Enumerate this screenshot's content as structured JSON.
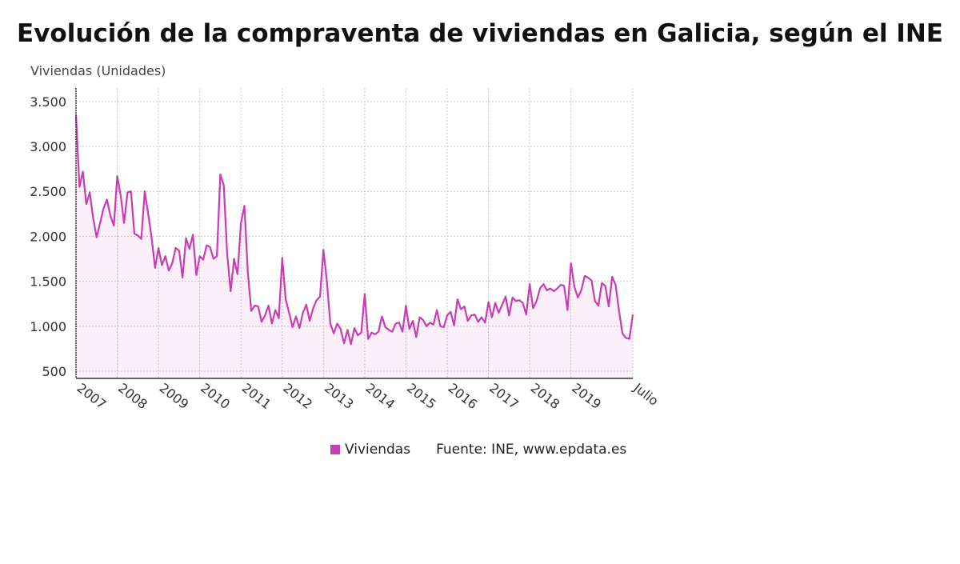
{
  "chart_data": {
    "type": "area",
    "title": "Evolución de la compraventa de viviendas en Galicia, según el INE",
    "ylabel": "Viviendas (Unidades)",
    "xlabel": "",
    "series": [
      {
        "name": "Viviendas",
        "color": "#c83cb4"
      }
    ],
    "source": "Fuente: INE, www.epdata.es",
    "ylim": [
      420,
      3650
    ],
    "yticks": [
      500,
      1000,
      1500,
      2000,
      2500,
      3000,
      3500
    ],
    "ytick_labels": [
      "500",
      "1.000",
      "1.500",
      "2.000",
      "2.500",
      "3.000",
      "3.500"
    ],
    "xticks": [
      {
        "label": "2007",
        "date": "2007-01"
      },
      {
        "label": "2008",
        "date": "2008-01"
      },
      {
        "label": "2009",
        "date": "2009-01"
      },
      {
        "label": "2010",
        "date": "2010-01"
      },
      {
        "label": "2011",
        "date": "2011-01"
      },
      {
        "label": "2012",
        "date": "2012-01"
      },
      {
        "label": "2013",
        "date": "2013-01"
      },
      {
        "label": "2014",
        "date": "2014-01"
      },
      {
        "label": "2015",
        "date": "2015-01"
      },
      {
        "label": "2016",
        "date": "2016-01"
      },
      {
        "label": "2017",
        "date": "2017-01"
      },
      {
        "label": "2018",
        "date": "2018-01"
      },
      {
        "label": "2019",
        "date": "2019-01"
      },
      {
        "label": "Julio",
        "date": "2020-07"
      }
    ],
    "x_start": "2007-01",
    "x_end": "2020-07",
    "grid": true,
    "legend_position": "bottom",
    "values": [
      3350,
      2550,
      2720,
      2360,
      2490,
      2200,
      1990,
      2150,
      2310,
      2410,
      2230,
      2120,
      2670,
      2450,
      2150,
      2490,
      2500,
      2030,
      2010,
      1970,
      2500,
      2250,
      1990,
      1650,
      1870,
      1680,
      1780,
      1620,
      1700,
      1870,
      1840,
      1540,
      1980,
      1860,
      2020,
      1570,
      1780,
      1740,
      1900,
      1880,
      1750,
      1780,
      2690,
      2570,
      1800,
      1390,
      1750,
      1580,
      2150,
      2340,
      1600,
      1170,
      1230,
      1220,
      1050,
      1120,
      1230,
      1030,
      1180,
      1090,
      1760,
      1300,
      1150,
      990,
      1110,
      980,
      1150,
      1240,
      1060,
      1200,
      1290,
      1330,
      1850,
      1500,
      1030,
      920,
      1030,
      970,
      810,
      960,
      800,
      980,
      900,
      930,
      1360,
      860,
      930,
      910,
      940,
      1110,
      990,
      960,
      940,
      1030,
      1040,
      940,
      1230,
      970,
      1060,
      880,
      1100,
      1070,
      1000,
      1040,
      1020,
      1180,
      1000,
      990,
      1120,
      1160,
      1010,
      1300,
      1190,
      1220,
      1060,
      1120,
      1130,
      1050,
      1100,
      1040,
      1270,
      1100,
      1260,
      1150,
      1240,
      1330,
      1120,
      1320,
      1280,
      1290,
      1260,
      1130,
      1470,
      1200,
      1280,
      1420,
      1470,
      1400,
      1420,
      1390,
      1420,
      1460,
      1450,
      1180,
      1700,
      1440,
      1320,
      1400,
      1560,
      1540,
      1510,
      1280,
      1230,
      1480,
      1450,
      1220,
      1550,
      1460,
      1170,
      920,
      870,
      860,
      1130
    ]
  }
}
